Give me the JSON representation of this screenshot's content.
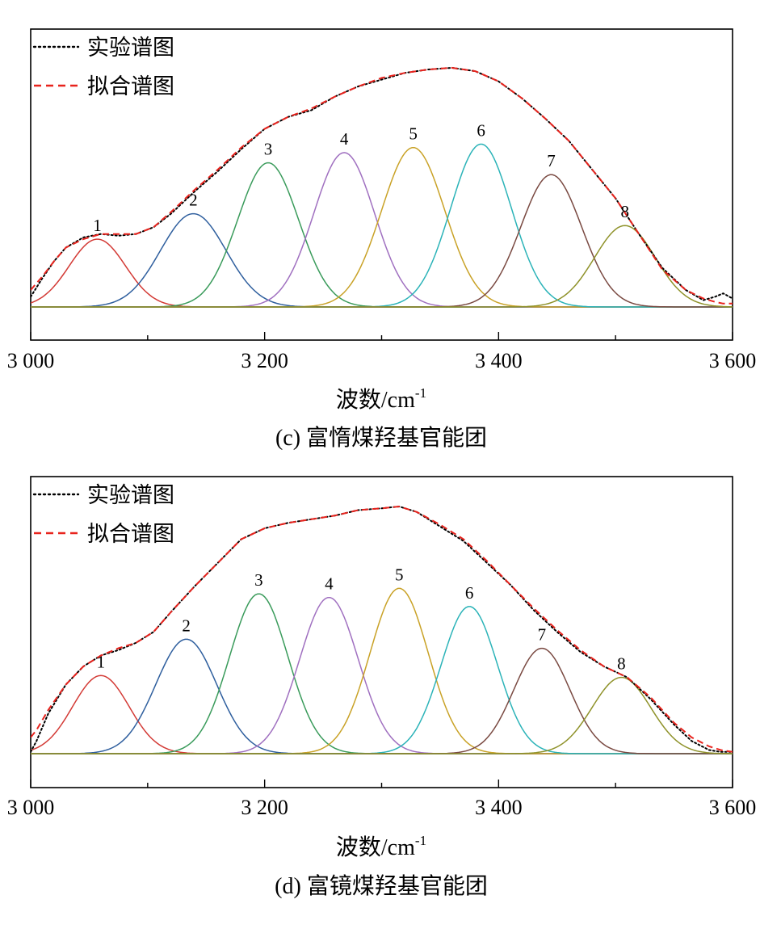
{
  "chart_data": [
    {
      "type": "line",
      "caption": "(c) 富惰煤羟基官能团",
      "xlabel": "波数/cm",
      "xlabel_sup": "-1",
      "xlim": [
        3000,
        3600
      ],
      "xticks": [
        3000,
        3200,
        3400,
        3600
      ],
      "xtick_labels": [
        "3 000",
        "3 200",
        "3 400",
        "3 600"
      ],
      "grid": false,
      "legend": {
        "placement": "top-left",
        "entries": [
          {
            "label": "实验谱图",
            "style": "dotted",
            "color": "#000000"
          },
          {
            "label": "拟合谱图",
            "style": "dashed",
            "color": "#e8231d"
          }
        ]
      },
      "peaks": [
        {
          "label": "1",
          "center": 3057,
          "height": 0.4,
          "sigma": 24,
          "color": "#d33a35"
        },
        {
          "label": "2",
          "center": 3139,
          "height": 0.55,
          "sigma": 28,
          "color": "#2f5f9e"
        },
        {
          "label": "3",
          "center": 3203,
          "height": 0.85,
          "sigma": 26,
          "color": "#3a9b5b"
        },
        {
          "label": "4",
          "center": 3268,
          "height": 0.91,
          "sigma": 26,
          "color": "#a070c0"
        },
        {
          "label": "5",
          "center": 3327,
          "height": 0.94,
          "sigma": 27,
          "color": "#c9a227"
        },
        {
          "label": "6",
          "center": 3385,
          "height": 0.96,
          "sigma": 26,
          "color": "#2bb3b8"
        },
        {
          "label": "7",
          "center": 3445,
          "height": 0.78,
          "sigma": 26,
          "color": "#7a4a42"
        },
        {
          "label": "8",
          "center": 3508,
          "height": 0.48,
          "sigma": 26,
          "color": "#8f922a"
        }
      ],
      "series": [
        {
          "name": "实验谱图",
          "x": [
            3000,
            3010,
            3020,
            3030,
            3045,
            3060,
            3075,
            3090,
            3105,
            3120,
            3140,
            3160,
            3180,
            3200,
            3220,
            3240,
            3260,
            3280,
            3300,
            3320,
            3340,
            3360,
            3380,
            3400,
            3420,
            3440,
            3460,
            3480,
            3500,
            3520,
            3540,
            3560,
            3575,
            3585,
            3592,
            3600
          ],
          "y": [
            0.06,
            0.17,
            0.27,
            0.35,
            0.41,
            0.43,
            0.42,
            0.43,
            0.47,
            0.55,
            0.68,
            0.8,
            0.93,
            1.05,
            1.12,
            1.16,
            1.24,
            1.3,
            1.34,
            1.38,
            1.4,
            1.41,
            1.39,
            1.33,
            1.23,
            1.11,
            0.98,
            0.81,
            0.64,
            0.43,
            0.23,
            0.1,
            0.04,
            0.06,
            0.08,
            0.05
          ]
        },
        {
          "name": "拟合谱图",
          "x": [
            3000,
            3010,
            3020,
            3030,
            3045,
            3060,
            3075,
            3090,
            3105,
            3120,
            3140,
            3160,
            3180,
            3200,
            3220,
            3240,
            3260,
            3280,
            3300,
            3320,
            3340,
            3360,
            3380,
            3400,
            3420,
            3440,
            3460,
            3480,
            3500,
            3520,
            3540,
            3560,
            3575,
            3585,
            3592,
            3600
          ],
          "y": [
            0.1,
            0.18,
            0.27,
            0.35,
            0.4,
            0.43,
            0.43,
            0.43,
            0.47,
            0.56,
            0.69,
            0.81,
            0.94,
            1.05,
            1.12,
            1.17,
            1.24,
            1.3,
            1.35,
            1.38,
            1.4,
            1.41,
            1.39,
            1.33,
            1.23,
            1.11,
            0.98,
            0.81,
            0.64,
            0.43,
            0.22,
            0.1,
            0.05,
            0.03,
            0.02,
            0.02
          ]
        }
      ]
    },
    {
      "type": "line",
      "caption": "(d) 富镜煤羟基官能团",
      "xlabel": "波数/cm",
      "xlabel_sup": "-1",
      "xlim": [
        3000,
        3600
      ],
      "xticks": [
        3000,
        3200,
        3400,
        3600
      ],
      "xtick_labels": [
        "3 000",
        "3 200",
        "3 400",
        "3 600"
      ],
      "grid": false,
      "legend": {
        "placement": "top-left",
        "entries": [
          {
            "label": "实验谱图",
            "style": "dotted",
            "color": "#000000"
          },
          {
            "label": "拟合谱图",
            "style": "dashed",
            "color": "#e8231d"
          }
        ]
      },
      "peaks": [
        {
          "label": "1",
          "center": 3060,
          "height": 0.43,
          "sigma": 24,
          "color": "#d33a35"
        },
        {
          "label": "2",
          "center": 3133,
          "height": 0.63,
          "sigma": 26,
          "color": "#2f5f9e"
        },
        {
          "label": "3",
          "center": 3195,
          "height": 0.88,
          "sigma": 25,
          "color": "#3a9b5b"
        },
        {
          "label": "4",
          "center": 3255,
          "height": 0.86,
          "sigma": 25,
          "color": "#a070c0"
        },
        {
          "label": "5",
          "center": 3315,
          "height": 0.91,
          "sigma": 25,
          "color": "#c9a227"
        },
        {
          "label": "6",
          "center": 3375,
          "height": 0.81,
          "sigma": 24,
          "color": "#2bb3b8"
        },
        {
          "label": "7",
          "center": 3437,
          "height": 0.58,
          "sigma": 24,
          "color": "#7a4a42"
        },
        {
          "label": "8",
          "center": 3505,
          "height": 0.42,
          "sigma": 25,
          "color": "#8f922a"
        }
      ],
      "series": [
        {
          "name": "实验谱图",
          "x": [
            3000,
            3005,
            3015,
            3030,
            3045,
            3060,
            3075,
            3090,
            3105,
            3120,
            3140,
            3160,
            3180,
            3200,
            3220,
            3240,
            3260,
            3280,
            3300,
            3315,
            3330,
            3350,
            3370,
            3390,
            3410,
            3430,
            3450,
            3470,
            3490,
            3510,
            3530,
            3550,
            3565,
            3580,
            3590,
            3600
          ],
          "y": [
            0.01,
            0.07,
            0.22,
            0.38,
            0.48,
            0.54,
            0.57,
            0.61,
            0.67,
            0.78,
            0.92,
            1.05,
            1.18,
            1.24,
            1.27,
            1.29,
            1.31,
            1.34,
            1.35,
            1.36,
            1.33,
            1.25,
            1.17,
            1.05,
            0.93,
            0.79,
            0.67,
            0.56,
            0.48,
            0.42,
            0.3,
            0.16,
            0.07,
            0.02,
            0.01,
            0.01
          ]
        },
        {
          "name": "拟合谱图",
          "x": [
            3000,
            3005,
            3015,
            3030,
            3045,
            3060,
            3075,
            3090,
            3105,
            3120,
            3140,
            3160,
            3180,
            3200,
            3220,
            3240,
            3260,
            3280,
            3300,
            3315,
            3330,
            3350,
            3370,
            3390,
            3410,
            3430,
            3450,
            3470,
            3490,
            3510,
            3530,
            3550,
            3565,
            3580,
            3590,
            3600
          ],
          "y": [
            0.09,
            0.13,
            0.24,
            0.38,
            0.48,
            0.54,
            0.58,
            0.61,
            0.67,
            0.78,
            0.92,
            1.05,
            1.18,
            1.24,
            1.27,
            1.29,
            1.31,
            1.34,
            1.35,
            1.36,
            1.33,
            1.26,
            1.18,
            1.06,
            0.93,
            0.8,
            0.68,
            0.57,
            0.48,
            0.42,
            0.31,
            0.17,
            0.09,
            0.04,
            0.02,
            0.01
          ]
        }
      ]
    }
  ]
}
